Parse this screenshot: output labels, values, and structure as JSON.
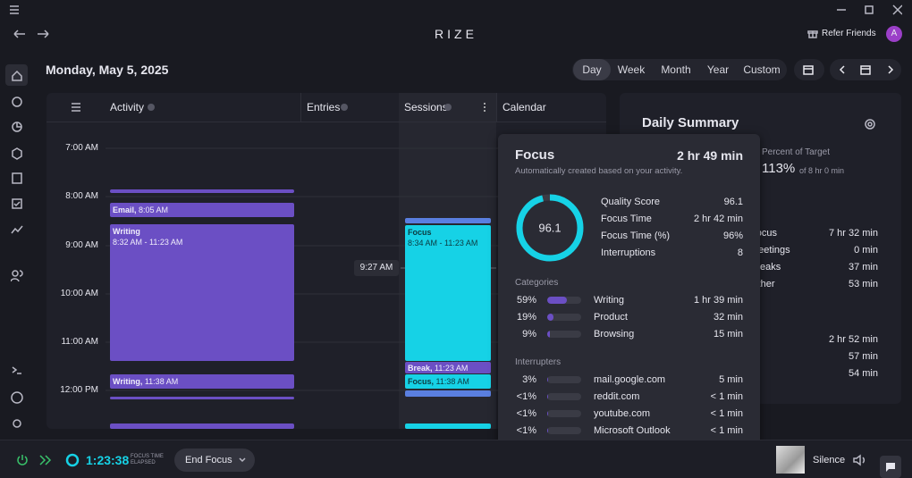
{
  "window": {
    "app_name": "RIZE",
    "refer": "Refer Friends",
    "avatar": "A"
  },
  "header": {
    "date": "Monday, May 5, 2025",
    "ranges": [
      "Day",
      "Week",
      "Month",
      "Year",
      "Custom"
    ]
  },
  "timeline": {
    "columns": [
      "Activity",
      "Entries",
      "Sessions",
      "Calendar"
    ],
    "times": [
      "7:00 AM",
      "8:00 AM",
      "9:00 AM",
      "10:00 AM",
      "11:00 AM",
      "12:00 PM"
    ],
    "activity": [
      {
        "label": "Email,",
        "time": "8:05 AM"
      },
      {
        "label": "Writing",
        "time": "8:32 AM - 11:23 AM"
      },
      {
        "label": "Writing,",
        "time": "11:38 AM"
      }
    ],
    "sessions": [
      {
        "label": "Focus",
        "time": "8:34 AM - 11:23 AM"
      },
      {
        "label": "Break,",
        "time": "11:23 AM"
      },
      {
        "label": "Focus,",
        "time": "11:38 AM"
      }
    ],
    "current_time": "9:27 AM"
  },
  "daily_summary": {
    "title": "Daily Summary",
    "target_label": "Percent of Target",
    "target_percent": "113%",
    "target_of": "of 8 hr 0 min",
    "rows": [
      {
        "label": "Focus",
        "value": "7 hr 32 min"
      },
      {
        "label": "Meetings",
        "value": "0 min"
      },
      {
        "label": "Breaks",
        "value": "37 min"
      },
      {
        "label": "Other",
        "value": "53 min"
      }
    ],
    "more_values": [
      "2 hr 52 min",
      "57 min",
      "54 min"
    ]
  },
  "popup": {
    "title": "Focus",
    "duration": "2 hr 49 min",
    "subtitle": "Automatically created based on your activity.",
    "metrics": [
      {
        "label": "Quality Score",
        "value": 96.1
      },
      {
        "label": "Focus Time",
        "value": "2 hr 42 min"
      },
      {
        "label": "Focus Time (%)",
        "value": "96%"
      },
      {
        "label": "Interruptions",
        "value": 8
      }
    ],
    "categories_title": "Categories",
    "categories": [
      {
        "share": 59,
        "share_label": "59%",
        "name": "Writing",
        "time": "1 hr 39 min"
      },
      {
        "share": 19,
        "share_label": "19%",
        "name": "Product",
        "time": "32 min"
      },
      {
        "share": 9,
        "share_label": "9%",
        "name": "Browsing",
        "time": "15 min"
      }
    ],
    "interrupters_title": "Interrupters",
    "interrupters": [
      {
        "share": 3,
        "share_label": "3%",
        "name": "mail.google.com",
        "time": "5 min"
      },
      {
        "share": 0.5,
        "share_label": "<1%",
        "name": "reddit.com",
        "time": "< 1 min"
      },
      {
        "share": 0.5,
        "share_label": "<1%",
        "name": "youtube.com",
        "time": "< 1 min"
      },
      {
        "share": 0.5,
        "share_label": "<1%",
        "name": "Microsoft Outlook",
        "time": "< 1 min"
      }
    ]
  },
  "footer": {
    "timer": "1:23:38",
    "timer_caption": [
      "FOCUS TIME",
      "ELAPSED"
    ],
    "button": "End Focus",
    "sound": "Silence"
  }
}
